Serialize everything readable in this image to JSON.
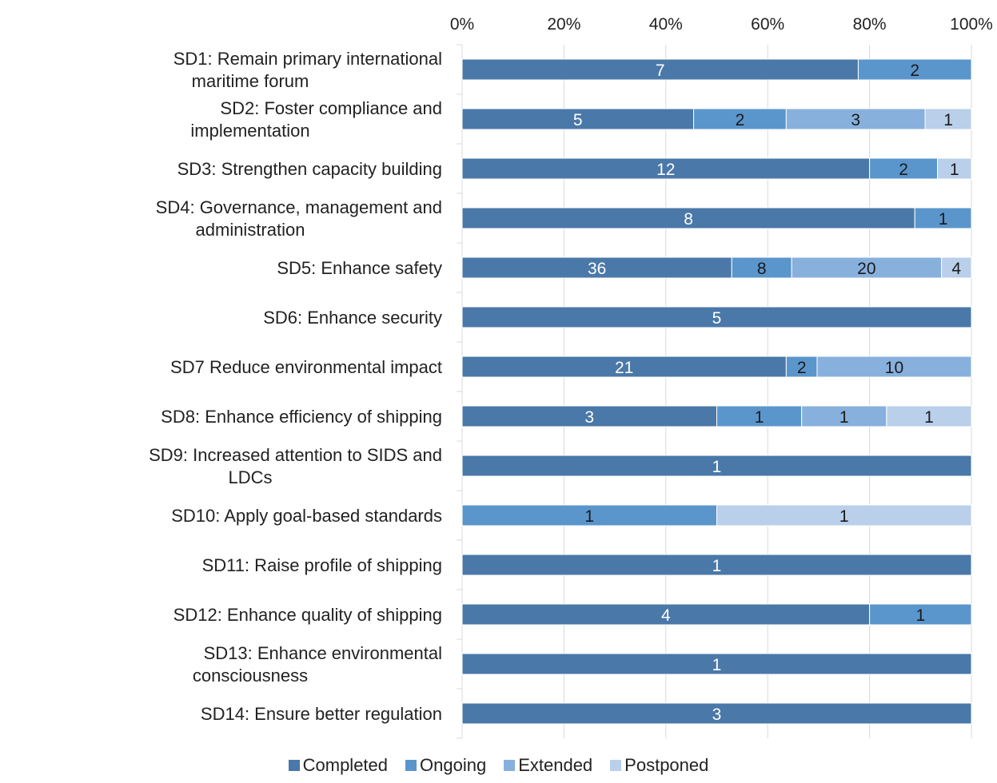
{
  "chart_data": {
    "type": "bar",
    "orientation": "horizontal",
    "stacking": "percent",
    "title": "",
    "xlabel": "",
    "ylabel": "",
    "xlim": [
      0,
      100
    ],
    "x_ticks": [
      "0%",
      "20%",
      "40%",
      "60%",
      "80%",
      "100%"
    ],
    "x_axis_position": "top",
    "grid": true,
    "legend_position": "bottom",
    "categories": [
      "SD1: Remain primary international maritime forum",
      "SD2: Foster compliance and implementation",
      "SD3: Strengthen capacity building",
      "SD4: Governance, management and administration",
      "SD5: Enhance safety",
      "SD6: Enhance security",
      "SD7 Reduce environmental impact",
      "SD8: Enhance efficiency of shipping",
      "SD9: Increased attention to SIDS and LDCs",
      "SD10: Apply goal-based standards",
      "SD11: Raise profile of shipping",
      "SD12: Enhance quality of shipping",
      "SD13: Enhance environmental consciousness",
      "SD14: Ensure better regulation"
    ],
    "series": [
      {
        "name": "Completed",
        "color": "#4a78a8",
        "label_color": "#ffffff",
        "values": [
          7,
          5,
          12,
          8,
          36,
          5,
          21,
          3,
          1,
          0,
          1,
          4,
          1,
          3
        ]
      },
      {
        "name": "Ongoing",
        "color": "#5a96cc",
        "label_color": "#1a1a1a",
        "values": [
          2,
          2,
          2,
          1,
          8,
          0,
          2,
          1,
          0,
          1,
          0,
          1,
          0,
          0
        ]
      },
      {
        "name": "Extended",
        "color": "#88b0dd",
        "label_color": "#1a1a1a",
        "values": [
          0,
          3,
          0,
          0,
          20,
          0,
          10,
          1,
          0,
          0,
          0,
          0,
          0,
          0
        ]
      },
      {
        "name": "Postponed",
        "color": "#b9cfea",
        "label_color": "#1a1a1a",
        "values": [
          0,
          1,
          1,
          0,
          4,
          0,
          0,
          1,
          0,
          1,
          0,
          0,
          0,
          0
        ]
      }
    ]
  }
}
